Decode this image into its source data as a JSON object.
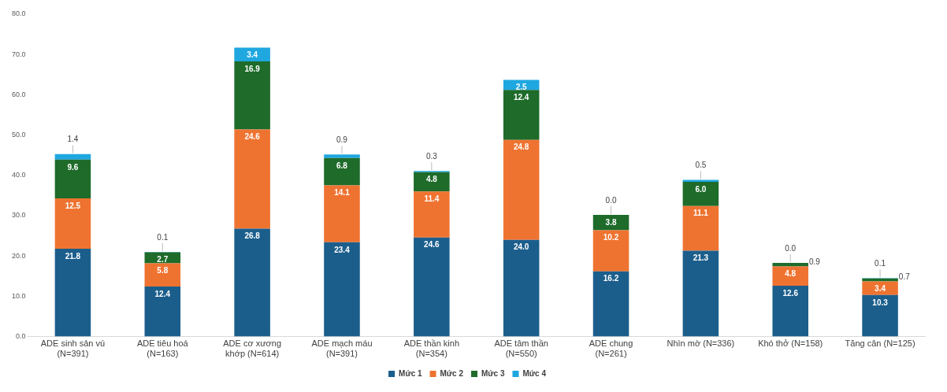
{
  "chart_data": {
    "type": "bar",
    "stacked": true,
    "categories": [
      "ADE sinh sản vú (N=391)",
      "ADE tiêu hoá (N=163)",
      "ADE cơ xương khớp (N=614)",
      "ADE mạch máu (N=391)",
      "ADE thần kinh (N=354)",
      "ADE tâm thần (N=550)",
      "ADE chung (N=261)",
      "Nhìn mờ (N=336)",
      "Khó thở (N=158)",
      "Tăng cân (N=125)"
    ],
    "series": [
      {
        "name": "Mức 1",
        "color": "#1b5e8c",
        "values": [
          21.8,
          12.4,
          26.8,
          23.4,
          24.6,
          24.0,
          16.2,
          21.3,
          12.6,
          10.3
        ],
        "value_labels": [
          "21.8",
          "12.4",
          "26.8",
          "23.4",
          "24.6",
          "24.0",
          "16.2",
          "21.3",
          "12.6",
          "10.3"
        ]
      },
      {
        "name": "Mức 2",
        "color": "#ef7330",
        "values": [
          12.5,
          5.8,
          24.6,
          14.1,
          11.4,
          24.8,
          10.2,
          11.1,
          4.8,
          3.4
        ],
        "value_labels": [
          "12.5",
          "5.8",
          "24.6",
          "14.1",
          "11.4",
          "24.8",
          "10.2",
          "11.1",
          "4.8",
          "3.4"
        ]
      },
      {
        "name": "Mức 3",
        "color": "#1e6b2a",
        "values": [
          9.6,
          2.7,
          16.9,
          6.8,
          4.8,
          12.4,
          3.8,
          6.0,
          0.9,
          0.7
        ],
        "value_labels": [
          "9.6",
          "2.7",
          "16.9",
          "6.8",
          "4.8",
          "12.4",
          "3.8",
          "6.0",
          "0.9",
          "0.7"
        ]
      },
      {
        "name": "Mức 4",
        "color": "#1fa7e0",
        "values": [
          1.4,
          0.1,
          3.4,
          0.9,
          0.3,
          2.5,
          0.0,
          0.5,
          0.0,
          0.1
        ],
        "value_labels": [
          "1.4",
          "0.1",
          "3.4",
          "0.9",
          "0.3",
          "2.5",
          "0.0",
          "0.5",
          "0.0",
          "0.1"
        ]
      }
    ],
    "ylim": [
      0,
      80
    ],
    "yticks": [
      {
        "value": 0,
        "label": "0.0"
      },
      {
        "value": 10,
        "label": "10.0"
      },
      {
        "value": 20,
        "label": "20.0"
      },
      {
        "value": 30,
        "label": "30.0"
      },
      {
        "value": 40,
        "label": "40.0"
      },
      {
        "value": 50,
        "label": "50.0"
      },
      {
        "value": 60,
        "label": "60.0"
      },
      {
        "value": 70,
        "label": "70.0"
      },
      {
        "value": 80,
        "label": "80.0"
      }
    ],
    "grid": false,
    "legend": "bottom"
  }
}
